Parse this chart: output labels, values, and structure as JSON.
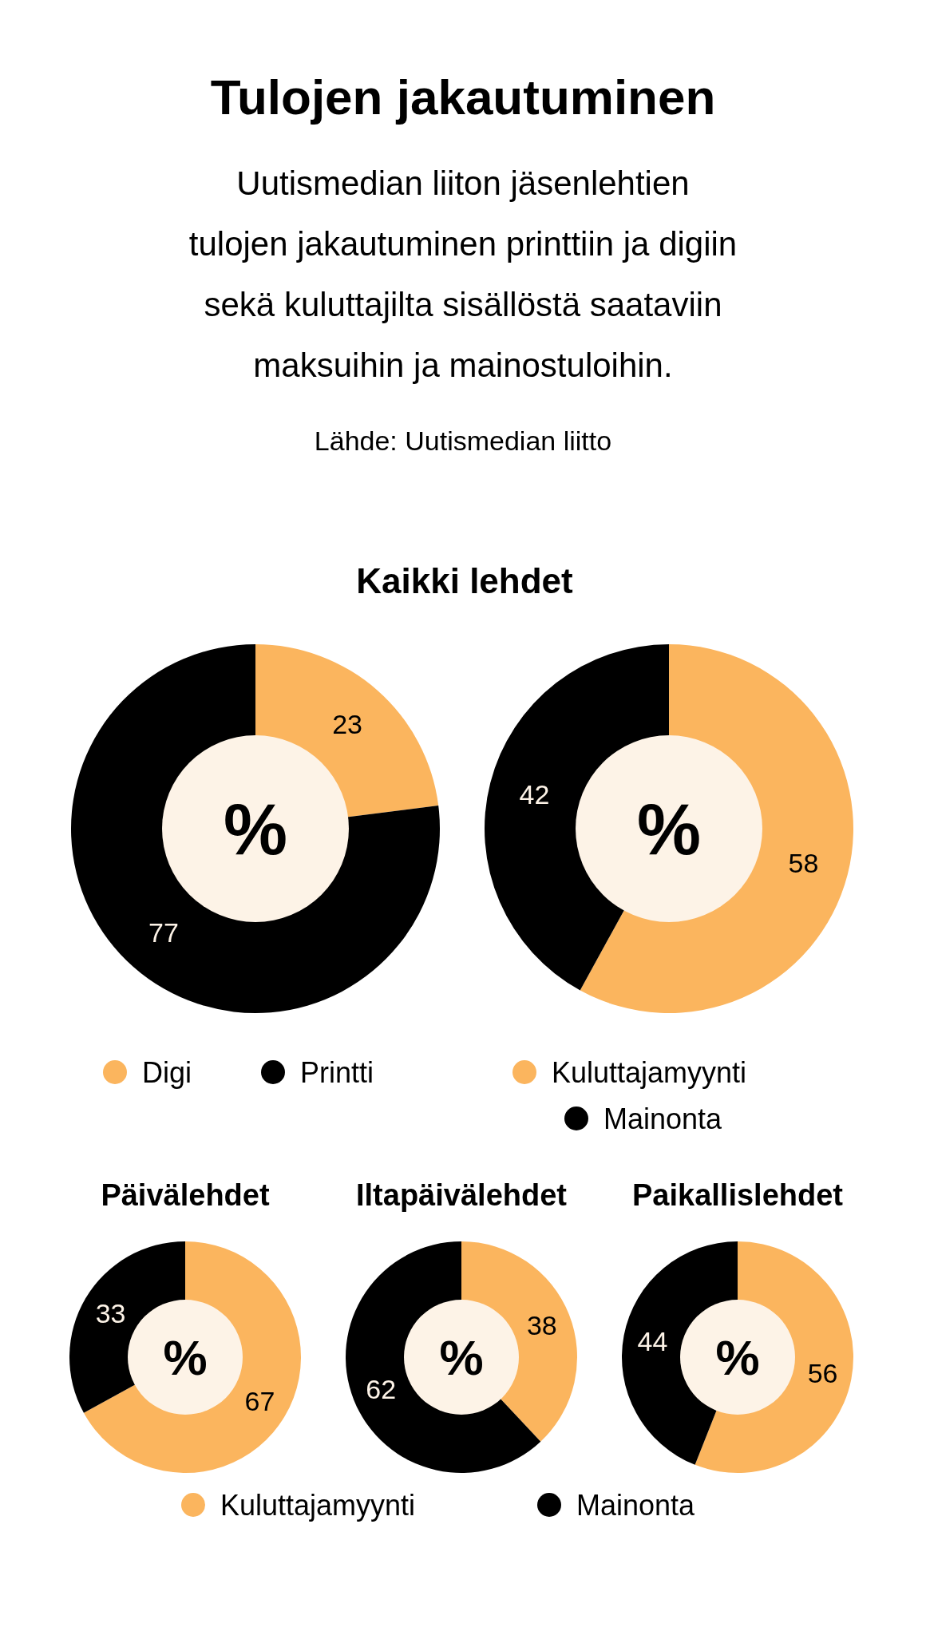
{
  "chart_data": [
    {
      "type": "other",
      "title": "Tulojen jakautuminen",
      "subtitle": "Uutismedian liiton jäsenlehtien\ntulojen jakautuminen printtiin ja digiin\nsekä kuluttajilta sisällöstä saataviin\nmaksuihin ja mainostuloihin.",
      "annotations": [
        "Lähde: Uutismedian liitto"
      ]
    },
    {
      "type": "donut",
      "title": "Kaikki lehdet",
      "categories": [
        "Digi",
        "Printti"
      ],
      "values": [
        23,
        77
      ],
      "colors": [
        "#fbb55e",
        "#000000"
      ],
      "data_labels": true,
      "legend": "bottom",
      "annotations": [
        "%"
      ]
    },
    {
      "type": "donut",
      "categories": [
        "Kuluttajamyynti",
        "Mainonta"
      ],
      "values": [
        58,
        42
      ],
      "colors": [
        "#fbb55e",
        "#000000"
      ],
      "data_labels": true,
      "legend": "bottom",
      "annotations": [
        "%"
      ]
    },
    {
      "type": "donut",
      "title": "Päivälehdet",
      "categories": [
        null,
        null
      ],
      "values": [
        67,
        33
      ],
      "colors": [
        "#fbb55e",
        "#000000"
      ],
      "data_labels": true,
      "annotations": [
        "%"
      ]
    },
    {
      "type": "donut",
      "title": "Iltapäivälehdet",
      "categories": [
        "Kuluttajamyynti",
        "Mainonta"
      ],
      "values": [
        38,
        62
      ],
      "colors": [
        "#fbb55e",
        "#000000"
      ],
      "data_labels": true,
      "legend": "bottom",
      "annotations": [
        "%"
      ]
    },
    {
      "type": "donut",
      "title": "Paikallislehdet",
      "categories": [
        null,
        null
      ],
      "values": [
        56,
        44
      ],
      "colors": [
        "#fbb55e",
        "#000000"
      ],
      "data_labels": true,
      "annotations": [
        "%"
      ]
    }
  ]
}
